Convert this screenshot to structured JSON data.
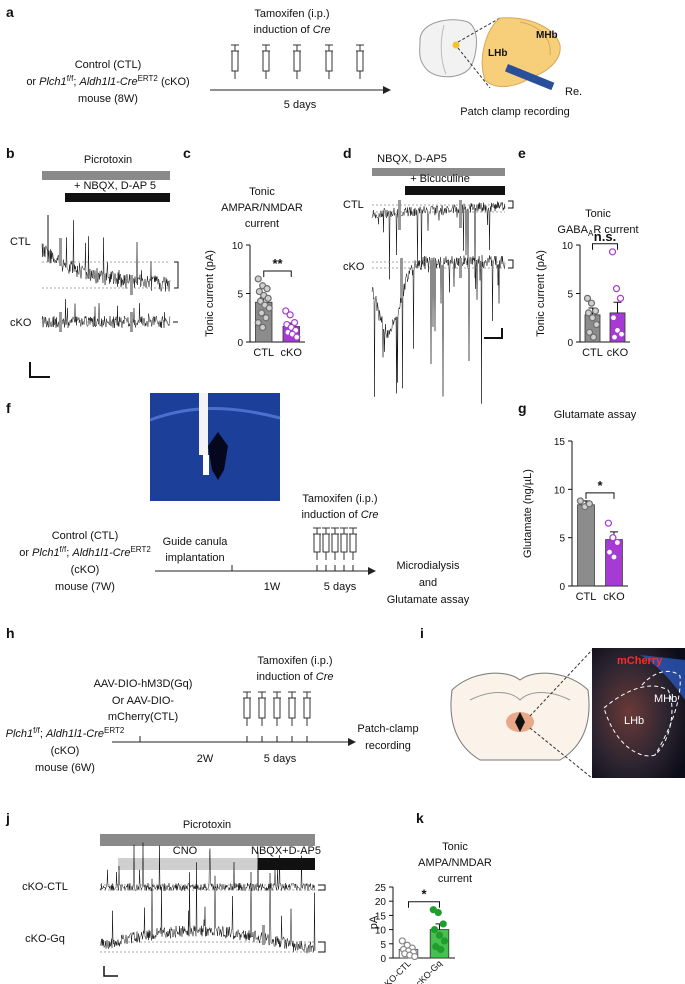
{
  "panels": {
    "a": {
      "label": "a",
      "tamoxifen_1": "Tamoxifen (i.p.)",
      "tamoxifen_2": [
        "induction of ",
        "Cre"
      ],
      "mouse_1": "Control (CTL)",
      "mouse_2": [
        "or ",
        "Plch1",
        "f/f",
        "; ",
        "Aldh1l1-Cre",
        "ERT2",
        " (cKO)"
      ],
      "mouse_3": "mouse (8W)",
      "duration": "5 days",
      "recording": "Patch clamp recording",
      "lhb": "LHb",
      "mhb": "MHb",
      "re": "Re."
    },
    "b": {
      "label": "b",
      "drug_1": "Picrotoxin",
      "drug_2": "+ NBQX, D-AP 5",
      "trace_1": "CTL",
      "trace_2": "cKO"
    },
    "c": {
      "label": "c"
    },
    "d": {
      "label": "d",
      "drug_1": "NBQX, D-AP5",
      "drug_2": "+ Bicuculine",
      "trace_1": "CTL",
      "trace_2": "cKO"
    },
    "e": {
      "label": "e"
    },
    "f": {
      "label": "f",
      "tamoxifen_1": "Tamoxifen (i.p.)",
      "tamoxifen_2": [
        "induction of ",
        "Cre"
      ],
      "mouse_1": "Control (CTL)",
      "mouse_2": [
        "or ",
        "Plch1",
        "f/f",
        "; ",
        "Aldh1l1-Cre",
        "ERT2"
      ],
      "mouse_3": "(cKO)",
      "mouse_4": "mouse (7W)",
      "step_1": "Guide canula",
      "step_2": "implantation",
      "interval_1": "1W",
      "interval_2": "5 days",
      "end_1": "Microdialysis",
      "end_2": "and",
      "end_3": "Glutamate assay"
    },
    "g": {
      "label": "g"
    },
    "h": {
      "label": "h",
      "tamoxifen_1": "Tamoxifen (i.p.)",
      "tamoxifen_2": [
        "induction of ",
        "Cre"
      ],
      "aav_1": "AAV-DIO-hM3D(Gq)",
      "aav_2": "Or AAV-DIO-",
      "aav_3": "mCherry(CTL)",
      "mouse_1": [
        "Plch1",
        "f/f",
        "; ",
        "Aldh1l1-Cre",
        "ERT2"
      ],
      "mouse_2": "(cKO)",
      "mouse_3": "mouse (6W)",
      "interval_1": "2W",
      "interval_2": "5 days",
      "end_1": "Patch-clamp",
      "end_2": "recording"
    },
    "i": {
      "label": "i",
      "marker": "mCherry",
      "lhb": "LHb",
      "mhb": "MHb"
    },
    "j": {
      "label": "j",
      "drug_1": "Picrotoxin",
      "drug_2": "CNO",
      "drug_3": "NBQX+D-AP5",
      "trace_1": "cKO-CTL",
      "trace_2": "cKO-Gq"
    },
    "k": {
      "label": "k"
    }
  },
  "chart_data": [
    {
      "type": "bar",
      "title": [
        "Tonic",
        "AMPAR/NMDAR",
        "current"
      ],
      "y_label": "Tonic current (pA)",
      "categories": [
        "CTL",
        "cKO"
      ],
      "values": [
        4.1,
        1.6
      ],
      "errors": [
        0.5,
        0.35
      ],
      "colors": [
        "#8c8c8c",
        "#a53bd3"
      ],
      "point_colors": [
        "#6e6e6e",
        "#a53bd3"
      ],
      "point_fill": [
        "#cfcfcf",
        "#ffffff"
      ],
      "points": [
        [
          6.5,
          5.8,
          5.5,
          5.2,
          4.8,
          4.5,
          4.2,
          3.8,
          3.5,
          3.0,
          2.5,
          2.0,
          1.5
        ],
        [
          3.2,
          2.8,
          2.0,
          1.8,
          1.5,
          1.2,
          1.0,
          0.8,
          0.5
        ]
      ],
      "significance": "**",
      "ylim": [
        0,
        10
      ],
      "yticks": [
        0,
        5,
        10
      ]
    },
    {
      "type": "bar",
      "title": [
        "Tonic",
        [
          "GABA",
          "A",
          "R current"
        ]
      ],
      "y_label": "Tonic current (pA)",
      "categories": [
        "CTL",
        "cKO"
      ],
      "values": [
        2.8,
        3.0
      ],
      "errors": [
        0.7,
        1.1
      ],
      "colors": [
        "#8c8c8c",
        "#a53bd3"
      ],
      "point_colors": [
        "#6e6e6e",
        "#a53bd3"
      ],
      "point_fill": [
        "#cfcfcf",
        "#ffffff"
      ],
      "points": [
        [
          4.5,
          4.0,
          3.2,
          3.0,
          2.5,
          1.8,
          1.0,
          0.5
        ],
        [
          9.3,
          5.5,
          4.5,
          2.5,
          1.2,
          0.8,
          0.5
        ]
      ],
      "significance": "n.s.",
      "ylim": [
        0,
        10
      ],
      "yticks": [
        0,
        5,
        10
      ]
    },
    {
      "type": "bar",
      "title": [
        "Glutamate assay"
      ],
      "y_label": "Glutamate (ng/µL)",
      "categories": [
        "CTL",
        "cKO"
      ],
      "values": [
        8.4,
        4.8
      ],
      "errors": [
        0.4,
        0.8
      ],
      "colors": [
        "#8c8c8c",
        "#a53bd3"
      ],
      "point_colors": [
        "#6e6e6e",
        "#a53bd3"
      ],
      "point_fill": [
        "#cfcfcf",
        "#ffffff"
      ],
      "points": [
        [
          8.8,
          8.2,
          8.5
        ],
        [
          6.5,
          5.0,
          4.5,
          3.5,
          3.0
        ]
      ],
      "significance": "*",
      "ylim": [
        0,
        15
      ],
      "yticks": [
        0,
        5,
        10,
        15
      ]
    },
    {
      "type": "bar",
      "title": [
        "Tonic",
        "AMPA/NMDAR",
        "current"
      ],
      "y_label": "pA",
      "categories": [
        "cKO-CTL",
        "cKO-Gq"
      ],
      "values": [
        3.0,
        10
      ],
      "errors": [
        0.9,
        2.0
      ],
      "colors": [
        "#ffffff",
        "#44c150"
      ],
      "point_colors": [
        "#888888",
        "#1f9e2e"
      ],
      "point_fill": [
        "#ffffff",
        "#1f9e2e"
      ],
      "points": [
        [
          6,
          4.5,
          3.5,
          3,
          2.5,
          2,
          1.5,
          1,
          0.5
        ],
        [
          17,
          16,
          12,
          10,
          8,
          6,
          4,
          3
        ]
      ],
      "significance": "*",
      "ylim": [
        0,
        25
      ],
      "yticks": [
        0,
        5,
        10,
        15,
        20,
        25
      ]
    }
  ]
}
